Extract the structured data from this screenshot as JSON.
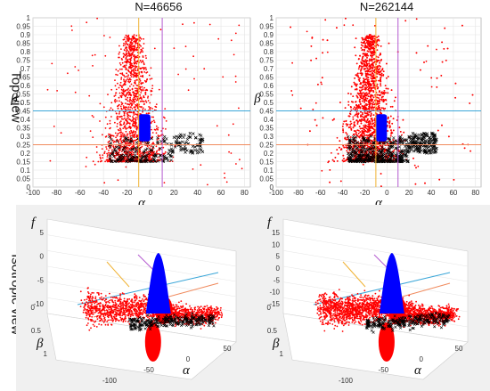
{
  "figure": {
    "column_titles": [
      "N=46656",
      "N=262144"
    ],
    "row_labels": [
      "Top view",
      "Isotropic view"
    ]
  },
  "chart_data": [
    {
      "type": "scatter",
      "view": "top",
      "title": "N=46656",
      "xlabel": "α",
      "ylabel": "β",
      "xlim": [
        -100,
        85
      ],
      "ylim": [
        0,
        1
      ],
      "xticks": [
        -100,
        -80,
        -60,
        -40,
        -20,
        0,
        20,
        40,
        60,
        80
      ],
      "yticks": [
        0,
        0.05,
        0.1,
        0.15,
        0.2,
        0.25,
        0.3,
        0.35,
        0.4,
        0.45,
        0.5,
        0.55,
        0.6,
        0.65,
        0.7,
        0.75,
        0.8,
        0.85,
        0.9,
        0.95,
        1
      ],
      "grid": true,
      "series": [
        {
          "color": "#ff0000",
          "marker": "dot"
        },
        {
          "color": "#000000",
          "marker": "x"
        },
        {
          "color": "#0000ff",
          "marker": "dot"
        }
      ],
      "blue_region": {
        "alpha": [
          -10,
          0
        ],
        "beta": [
          0.27,
          0.43
        ]
      },
      "reference_lines": [
        {
          "orientation": "horizontal",
          "value": 0.45,
          "color": "#3aa6d8"
        },
        {
          "orientation": "horizontal",
          "value": 0.25,
          "color": "#f08a5d"
        },
        {
          "orientation": "vertical",
          "value": -10,
          "color": "#f0b233"
        },
        {
          "orientation": "vertical",
          "value": 10,
          "color": "#b45ad0"
        }
      ]
    },
    {
      "type": "scatter",
      "view": "top",
      "title": "N=262144",
      "xlabel": "α",
      "ylabel": "β",
      "xlim": [
        -100,
        85
      ],
      "ylim": [
        0,
        1
      ],
      "xticks": [
        -100,
        -80,
        -60,
        -40,
        -20,
        0,
        20,
        40,
        60,
        80
      ],
      "yticks": [
        0,
        0.05,
        0.1,
        0.15,
        0.2,
        0.25,
        0.3,
        0.35,
        0.4,
        0.45,
        0.5,
        0.55,
        0.6,
        0.65,
        0.7,
        0.75,
        0.8,
        0.85,
        0.9,
        0.95,
        1
      ],
      "grid": true,
      "series": [
        {
          "color": "#ff0000",
          "marker": "dot"
        },
        {
          "color": "#000000",
          "marker": "x"
        },
        {
          "color": "#0000ff",
          "marker": "dot"
        }
      ],
      "blue_region": {
        "alpha": [
          -10,
          0
        ],
        "beta": [
          0.27,
          0.43
        ]
      },
      "reference_lines": [
        {
          "orientation": "horizontal",
          "value": 0.45,
          "color": "#3aa6d8"
        },
        {
          "orientation": "horizontal",
          "value": 0.25,
          "color": "#f08a5d"
        },
        {
          "orientation": "vertical",
          "value": -10,
          "color": "#f0b233"
        },
        {
          "orientation": "vertical",
          "value": 10,
          "color": "#b45ad0"
        }
      ]
    },
    {
      "type": "scatter",
      "view": "isotropic",
      "xlabel": "α",
      "ylabel": "β",
      "zlabel": "f",
      "xticks": [
        -100,
        -50,
        0,
        50
      ],
      "yticks": [
        0,
        0.5,
        1
      ],
      "zticks": [
        -10,
        -5,
        0,
        5
      ],
      "grid": true,
      "series": [
        {
          "color": "#ff0000",
          "marker": "dot"
        },
        {
          "color": "#000000",
          "marker": "x"
        },
        {
          "color": "#0000ff",
          "marker": "dot"
        }
      ]
    },
    {
      "type": "scatter",
      "view": "isotropic",
      "xlabel": "α",
      "ylabel": "β",
      "zlabel": "f",
      "xticks": [
        -100,
        -50,
        0,
        50
      ],
      "yticks": [
        0,
        0.5,
        1
      ],
      "zticks": [
        -15,
        -10,
        -5,
        0,
        5,
        10,
        15
      ],
      "grid": true,
      "series": [
        {
          "color": "#ff0000",
          "marker": "dot"
        },
        {
          "color": "#000000",
          "marker": "x"
        },
        {
          "color": "#0000ff",
          "marker": "dot"
        }
      ]
    }
  ]
}
